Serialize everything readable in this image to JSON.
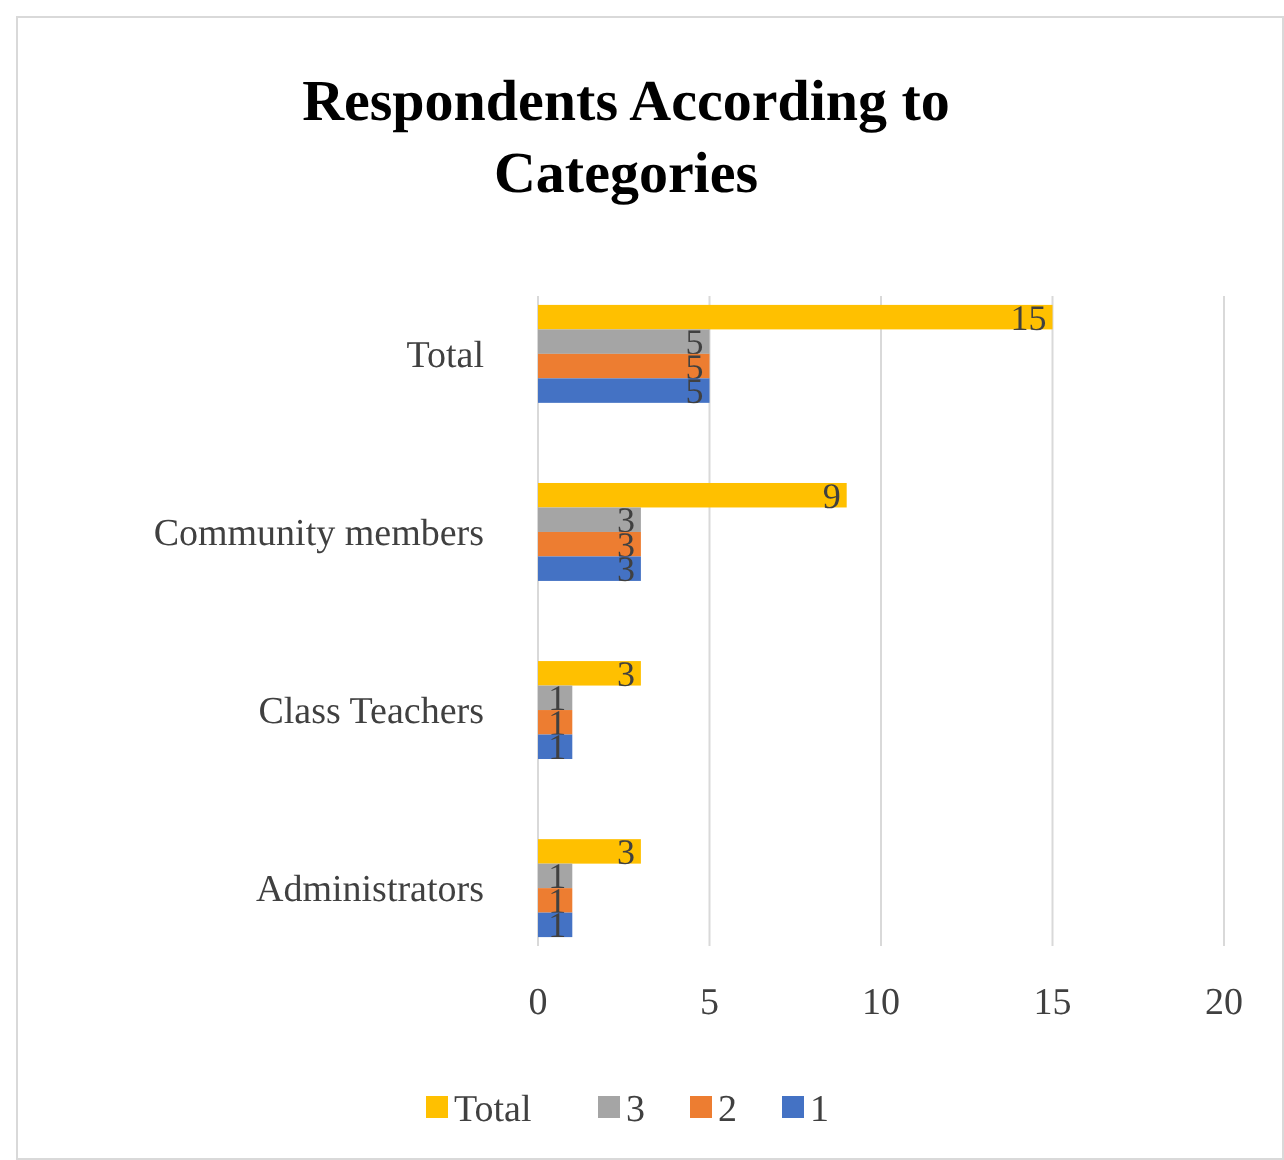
{
  "chart_data": {
    "type": "bar",
    "orientation": "horizontal",
    "title": "Respondents According to Categories",
    "categories": [
      "Total",
      "Community members",
      "Class Teachers",
      "Administrators"
    ],
    "series": [
      {
        "name": "Total",
        "color": "#ffc000",
        "values": [
          15,
          9,
          3,
          3
        ]
      },
      {
        "name": "3",
        "color": "#a5a5a5",
        "values": [
          5,
          3,
          1,
          1
        ]
      },
      {
        "name": "2",
        "color": "#ed7d31",
        "values": [
          5,
          3,
          1,
          1
        ]
      },
      {
        "name": "1",
        "color": "#4472c4",
        "values": [
          5,
          3,
          1,
          1
        ]
      }
    ],
    "xlim": [
      0,
      20
    ],
    "xticks": [
      0,
      5,
      10,
      15,
      20
    ],
    "grid": "x",
    "legend": "bottom",
    "data_labels": true
  }
}
